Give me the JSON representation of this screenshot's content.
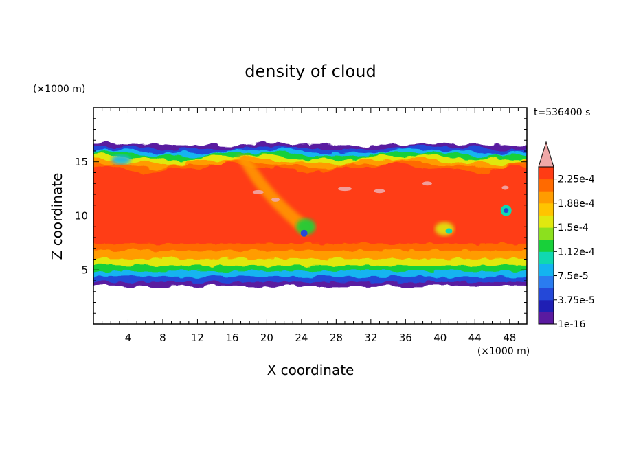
{
  "chart_data": {
    "type": "heatmap",
    "title": "density of cloud",
    "xlabel": "X coordinate",
    "ylabel": "Z coordinate",
    "x_unit": "(×1000 m)",
    "y_unit": "(×1000 m)",
    "time_label": "t=536400 s",
    "xlim": [
      0,
      50
    ],
    "ylim": [
      0,
      20
    ],
    "xticks": [
      4,
      8,
      12,
      16,
      20,
      24,
      28,
      32,
      36,
      40,
      44,
      48
    ],
    "yticks": [
      5,
      10,
      15
    ],
    "cloud_base_km": 3.5,
    "cloud_top_km": 16.6,
    "colorbar": {
      "levels": [
        1e-16,
        1.88e-05,
        3.75e-05,
        5.63e-05,
        7.5e-05,
        9.38e-05,
        0.000112,
        0.000131,
        0.00015,
        0.000169,
        0.000188,
        0.000206,
        0.000225,
        0.000244
      ],
      "labels": [
        "1e-16",
        "3.75e-5",
        "7.5e-5",
        "1.12e-4",
        "1.5e-4",
        "1.88e-4",
        "2.25e-4"
      ],
      "colors": [
        "#5a1aa0",
        "#1f1fb4",
        "#2448d8",
        "#2a7cf0",
        "#14b4f0",
        "#10d8b0",
        "#18d03a",
        "#8ce01e",
        "#e0e810",
        "#ffc400",
        "#ff9c00",
        "#ff6a00",
        "#ff3c14",
        "#f0a8a8"
      ],
      "extend": "max"
    }
  }
}
